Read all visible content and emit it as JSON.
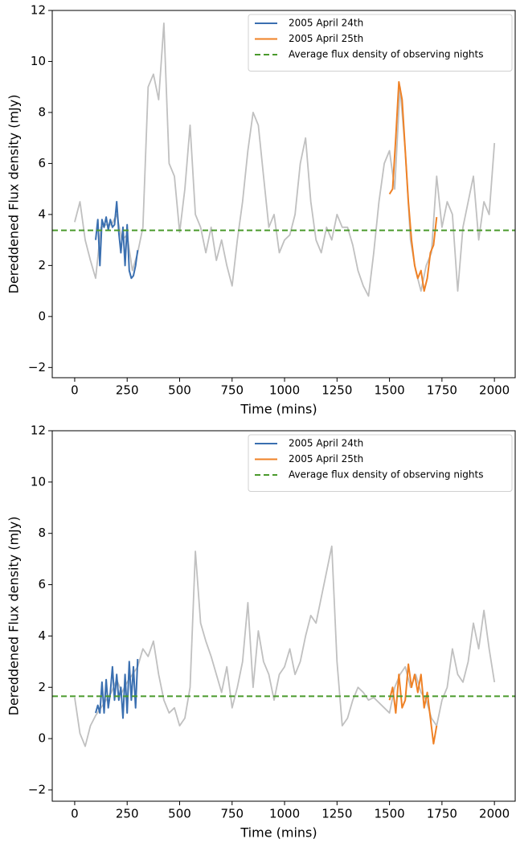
{
  "chart_data": [
    {
      "type": "line",
      "xlabel": "Time (mins)",
      "ylabel": "Dereddened Flux density (mJy)",
      "xlim": [
        -107,
        2099
      ],
      "ylim": [
        -2.4,
        12
      ],
      "xticks": [
        0,
        250,
        500,
        750,
        1000,
        1250,
        1500,
        1750,
        2000
      ],
      "yticks": [
        {
          "value": -2,
          "label": "−2"
        },
        0,
        2,
        4,
        6,
        8,
        10,
        12
      ],
      "legend": "upper right",
      "series": [
        {
          "color": "#c0c0c0",
          "x": [
            0,
            25,
            50,
            75,
            100,
            125,
            150,
            175,
            200,
            225,
            250,
            275,
            300,
            325,
            350,
            375,
            400,
            425,
            450,
            475,
            500,
            525,
            550,
            575,
            600,
            625,
            650,
            675,
            700,
            725,
            750,
            775,
            800,
            825,
            850,
            875,
            900,
            925,
            950,
            975,
            1000,
            1025,
            1050,
            1075,
            1100,
            1125,
            1150,
            1175,
            1200,
            1225,
            1250,
            1275,
            1300,
            1325,
            1350,
            1375,
            1400,
            1425,
            1450,
            1475,
            1500,
            1525,
            1550,
            1575,
            1600,
            1625,
            1650,
            1675,
            1700,
            1725,
            1750,
            1775,
            1800,
            1825,
            1850,
            1875,
            1900,
            1925,
            1950,
            1975,
            2000
          ],
          "values": [
            3.7,
            4.5,
            3.0,
            2.2,
            1.5,
            3.5,
            3.6,
            3.6,
            4.0,
            3.0,
            3.2,
            1.8,
            2.5,
            3.5,
            9.0,
            9.5,
            8.5,
            11.5,
            6.0,
            5.5,
            3.3,
            5.0,
            7.5,
            4.0,
            3.5,
            2.5,
            3.5,
            2.2,
            3.0,
            2.0,
            1.2,
            3.0,
            4.5,
            6.5,
            8.0,
            7.5,
            5.5,
            3.5,
            4.0,
            2.5,
            3.0,
            3.2,
            4.0,
            6.0,
            7.0,
            4.5,
            3.0,
            2.5,
            3.5,
            3.0,
            4.0,
            3.5,
            3.5,
            2.8,
            1.8,
            1.2,
            0.8,
            2.5,
            4.5,
            6.0,
            6.5,
            5.0,
            9.0,
            6.5,
            3.0,
            1.8,
            1.0,
            2.0,
            2.5,
            5.5,
            3.5,
            4.5,
            4.0,
            1.0,
            3.5,
            4.5,
            5.5,
            3.0,
            4.5,
            4.0,
            6.8
          ]
        },
        {
          "name": "2005 April 24th",
          "color": "#3a6fb0",
          "x": [
            100,
            110,
            120,
            130,
            140,
            150,
            160,
            170,
            180,
            190,
            200,
            210,
            220,
            230,
            240,
            250,
            260,
            270,
            280,
            290,
            300
          ],
          "values": [
            3.0,
            3.8,
            2.0,
            3.8,
            3.5,
            3.9,
            3.4,
            3.8,
            3.5,
            3.6,
            4.5,
            3.3,
            2.5,
            3.5,
            2.0,
            3.6,
            1.8,
            1.5,
            1.6,
            2.0,
            2.6
          ]
        },
        {
          "name": "2005 April 25th",
          "color": "#ef8125",
          "x": [
            1500,
            1515,
            1530,
            1545,
            1560,
            1575,
            1590,
            1605,
            1620,
            1635,
            1650,
            1665,
            1680,
            1695,
            1710,
            1725
          ],
          "values": [
            4.8,
            5.0,
            7.0,
            9.2,
            8.5,
            6.5,
            4.5,
            3.0,
            2.0,
            1.5,
            1.8,
            1.0,
            1.5,
            2.5,
            2.8,
            3.9
          ]
        }
      ],
      "hline": {
        "name": "Average flux density of observing nights",
        "color": "#4a9a2c",
        "value": 3.38,
        "linestyle": "dashed"
      }
    },
    {
      "type": "line",
      "xlabel": "Time (mins)",
      "ylabel": "Dereddened Flux density (mJy)",
      "xlim": [
        -107,
        2099
      ],
      "ylim": [
        -2.44,
        12
      ],
      "xticks": [
        0,
        250,
        500,
        750,
        1000,
        1250,
        1500,
        1750,
        2000
      ],
      "yticks": [
        {
          "value": -2,
          "label": "−2"
        },
        0,
        2,
        4,
        6,
        8,
        10,
        12
      ],
      "legend": "upper right",
      "series": [
        {
          "color": "#c0c0c0",
          "x": [
            0,
            25,
            50,
            75,
            100,
            125,
            150,
            175,
            200,
            225,
            250,
            275,
            300,
            325,
            350,
            375,
            400,
            425,
            450,
            475,
            500,
            525,
            550,
            575,
            600,
            625,
            650,
            675,
            700,
            725,
            750,
            775,
            800,
            825,
            850,
            875,
            900,
            925,
            950,
            975,
            1000,
            1025,
            1050,
            1075,
            1100,
            1125,
            1150,
            1175,
            1200,
            1225,
            1250,
            1275,
            1300,
            1325,
            1350,
            1375,
            1400,
            1425,
            1450,
            1475,
            1500,
            1525,
            1550,
            1575,
            1600,
            1625,
            1650,
            1675,
            1700,
            1725,
            1750,
            1775,
            1800,
            1825,
            1850,
            1875,
            1900,
            1925,
            1950,
            1975,
            2000
          ],
          "values": [
            1.6,
            0.2,
            -0.3,
            0.5,
            0.9,
            1.2,
            1.5,
            1.8,
            2.3,
            1.8,
            2.2,
            2.5,
            2.8,
            3.5,
            3.2,
            3.8,
            2.5,
            1.5,
            1.0,
            1.2,
            0.5,
            0.8,
            2.0,
            7.3,
            4.5,
            3.8,
            3.2,
            2.5,
            1.8,
            2.8,
            1.2,
            2.0,
            3.0,
            5.3,
            2.0,
            4.2,
            3.0,
            2.5,
            1.5,
            2.5,
            2.8,
            3.5,
            2.5,
            3.0,
            4.0,
            4.8,
            4.5,
            5.5,
            6.5,
            7.5,
            3.0,
            0.5,
            0.8,
            1.5,
            2.0,
            1.8,
            1.5,
            1.6,
            1.4,
            1.2,
            1.0,
            2.0,
            2.5,
            2.8,
            2.0,
            2.5,
            1.8,
            1.5,
            0.8,
            0.5,
            1.5,
            2.0,
            3.5,
            2.5,
            2.2,
            3.0,
            4.5,
            3.5,
            5.0,
            3.5,
            2.2
          ]
        },
        {
          "name": "2005 April 24th",
          "color": "#3a6fb0",
          "x": [
            100,
            110,
            120,
            130,
            140,
            150,
            160,
            170,
            180,
            190,
            200,
            210,
            220,
            230,
            240,
            250,
            260,
            270,
            280,
            290,
            300
          ],
          "values": [
            1.0,
            1.3,
            1.0,
            2.2,
            1.0,
            2.3,
            1.2,
            1.8,
            2.8,
            1.5,
            2.5,
            1.5,
            2.0,
            0.8,
            2.5,
            1.0,
            3.0,
            1.5,
            2.8,
            1.2,
            3.1
          ]
        },
        {
          "name": "2005 April 25th",
          "color": "#ef8125",
          "x": [
            1500,
            1515,
            1530,
            1545,
            1560,
            1575,
            1590,
            1605,
            1620,
            1635,
            1650,
            1665,
            1680,
            1695,
            1710,
            1725
          ],
          "values": [
            1.5,
            2.0,
            1.0,
            2.5,
            1.2,
            1.5,
            2.9,
            2.0,
            2.5,
            1.8,
            2.5,
            1.2,
            1.8,
            0.8,
            -0.2,
            0.5
          ]
        }
      ],
      "hline": {
        "name": "Average flux density of observing nights",
        "color": "#4a9a2c",
        "value": 1.65,
        "linestyle": "dashed"
      }
    }
  ]
}
